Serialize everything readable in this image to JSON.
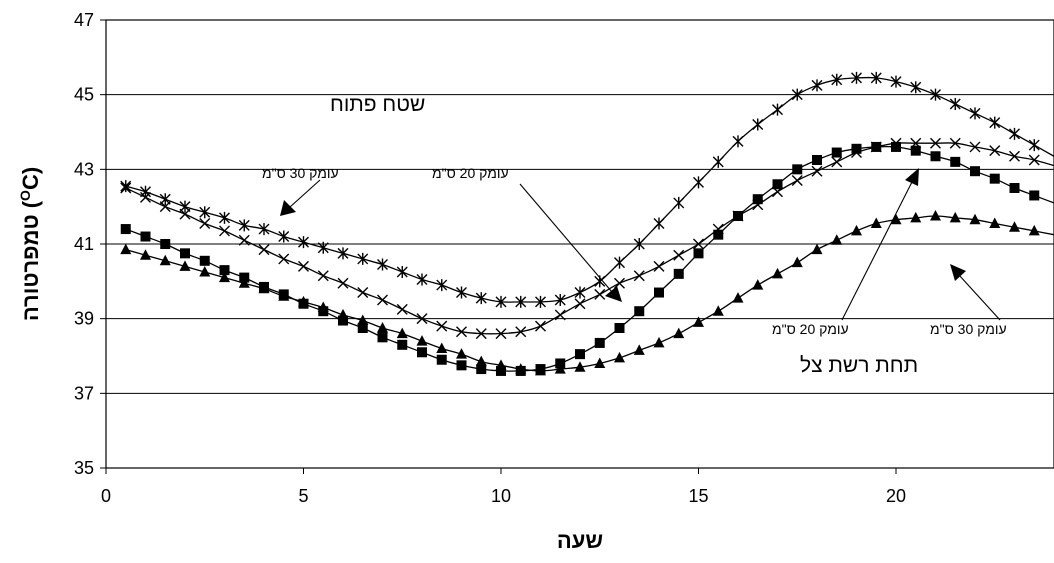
{
  "chart_data": {
    "type": "line",
    "xlabel": "שעה",
    "ylabel": "טמפרטורה (°C)",
    "ylabel_main": "טמפרטורה (",
    "ylabel_sup": "O",
    "ylabel_end": "C)",
    "xlim": [
      0,
      24
    ],
    "ylim": [
      35,
      47
    ],
    "x_ticks": [
      0,
      5,
      10,
      15,
      20
    ],
    "y_ticks": [
      35,
      37,
      39,
      41,
      43,
      45,
      47
    ],
    "grid": "horizontal",
    "x": [
      0.5,
      1.0,
      1.5,
      2.0,
      2.5,
      3.0,
      3.5,
      4.0,
      4.5,
      5.0,
      5.5,
      6.0,
      6.5,
      7.0,
      7.5,
      8.0,
      8.5,
      9.0,
      9.5,
      10.0,
      10.5,
      11.0,
      11.5,
      12.0,
      12.5,
      13.0,
      13.5,
      14.0,
      14.5,
      15.0,
      15.5,
      16.0,
      16.5,
      17.0,
      17.5,
      18.0,
      18.5,
      19.0,
      19.5,
      20.0,
      20.5,
      21.0,
      21.5,
      22.0,
      22.5,
      23.0,
      23.5,
      24.0
    ],
    "series": [
      {
        "marker": "star",
        "values": [
          42.55,
          42.4,
          42.2,
          42.0,
          41.85,
          41.7,
          41.5,
          41.4,
          41.2,
          41.05,
          40.9,
          40.75,
          40.6,
          40.45,
          40.25,
          40.05,
          39.9,
          39.7,
          39.55,
          39.45,
          39.45,
          39.45,
          39.5,
          39.7,
          40.0,
          40.5,
          41.0,
          41.55,
          42.1,
          42.65,
          43.2,
          43.75,
          44.2,
          44.6,
          45.0,
          45.25,
          45.4,
          45.45,
          45.45,
          45.35,
          45.2,
          45.0,
          44.75,
          44.5,
          44.25,
          43.95,
          43.65,
          43.35
        ]
      },
      {
        "marker": "x",
        "values": [
          42.5,
          42.25,
          42.0,
          41.8,
          41.55,
          41.35,
          41.1,
          40.85,
          40.6,
          40.4,
          40.15,
          39.95,
          39.7,
          39.5,
          39.25,
          39.0,
          38.8,
          38.65,
          38.6,
          38.6,
          38.65,
          38.8,
          39.1,
          39.4,
          39.65,
          39.95,
          40.15,
          40.4,
          40.7,
          41.0,
          41.4,
          41.75,
          42.05,
          42.4,
          42.7,
          42.95,
          43.2,
          43.45,
          43.6,
          43.7,
          43.7,
          43.7,
          43.7,
          43.6,
          43.5,
          43.35,
          43.25,
          43.1
        ]
      },
      {
        "marker": "square",
        "values": [
          41.4,
          41.2,
          41.0,
          40.75,
          40.55,
          40.3,
          40.1,
          39.85,
          39.65,
          39.4,
          39.2,
          38.95,
          38.75,
          38.5,
          38.3,
          38.1,
          37.9,
          37.75,
          37.65,
          37.6,
          37.6,
          37.65,
          37.8,
          38.05,
          38.35,
          38.75,
          39.2,
          39.7,
          40.2,
          40.75,
          41.25,
          41.75,
          42.2,
          42.6,
          43.0,
          43.25,
          43.45,
          43.55,
          43.6,
          43.6,
          43.5,
          43.35,
          43.2,
          42.95,
          42.75,
          42.5,
          42.3,
          42.1
        ]
      },
      {
        "marker": "triangle",
        "values": [
          40.85,
          40.7,
          40.55,
          40.4,
          40.25,
          40.1,
          39.95,
          39.8,
          39.6,
          39.45,
          39.3,
          39.1,
          38.95,
          38.75,
          38.6,
          38.4,
          38.2,
          38.05,
          37.85,
          37.75,
          37.65,
          37.6,
          37.65,
          37.7,
          37.8,
          37.95,
          38.15,
          38.35,
          38.6,
          38.9,
          39.2,
          39.55,
          39.9,
          40.2,
          40.5,
          40.85,
          41.1,
          41.35,
          41.55,
          41.65,
          41.7,
          41.75,
          41.7,
          41.65,
          41.55,
          41.45,
          41.35,
          41.25
        ]
      }
    ],
    "annotations": {
      "open_area": "שטח פתוח",
      "depth30_top": "עומק 30 ס\"מ",
      "depth20_top": "עומק 20 ס\"מ",
      "depth20_bottom": "עומק 20 ס\"מ",
      "depth30_bottom": "עומק 30 ס\"מ",
      "shade_net": "תחת רשת צל"
    }
  }
}
